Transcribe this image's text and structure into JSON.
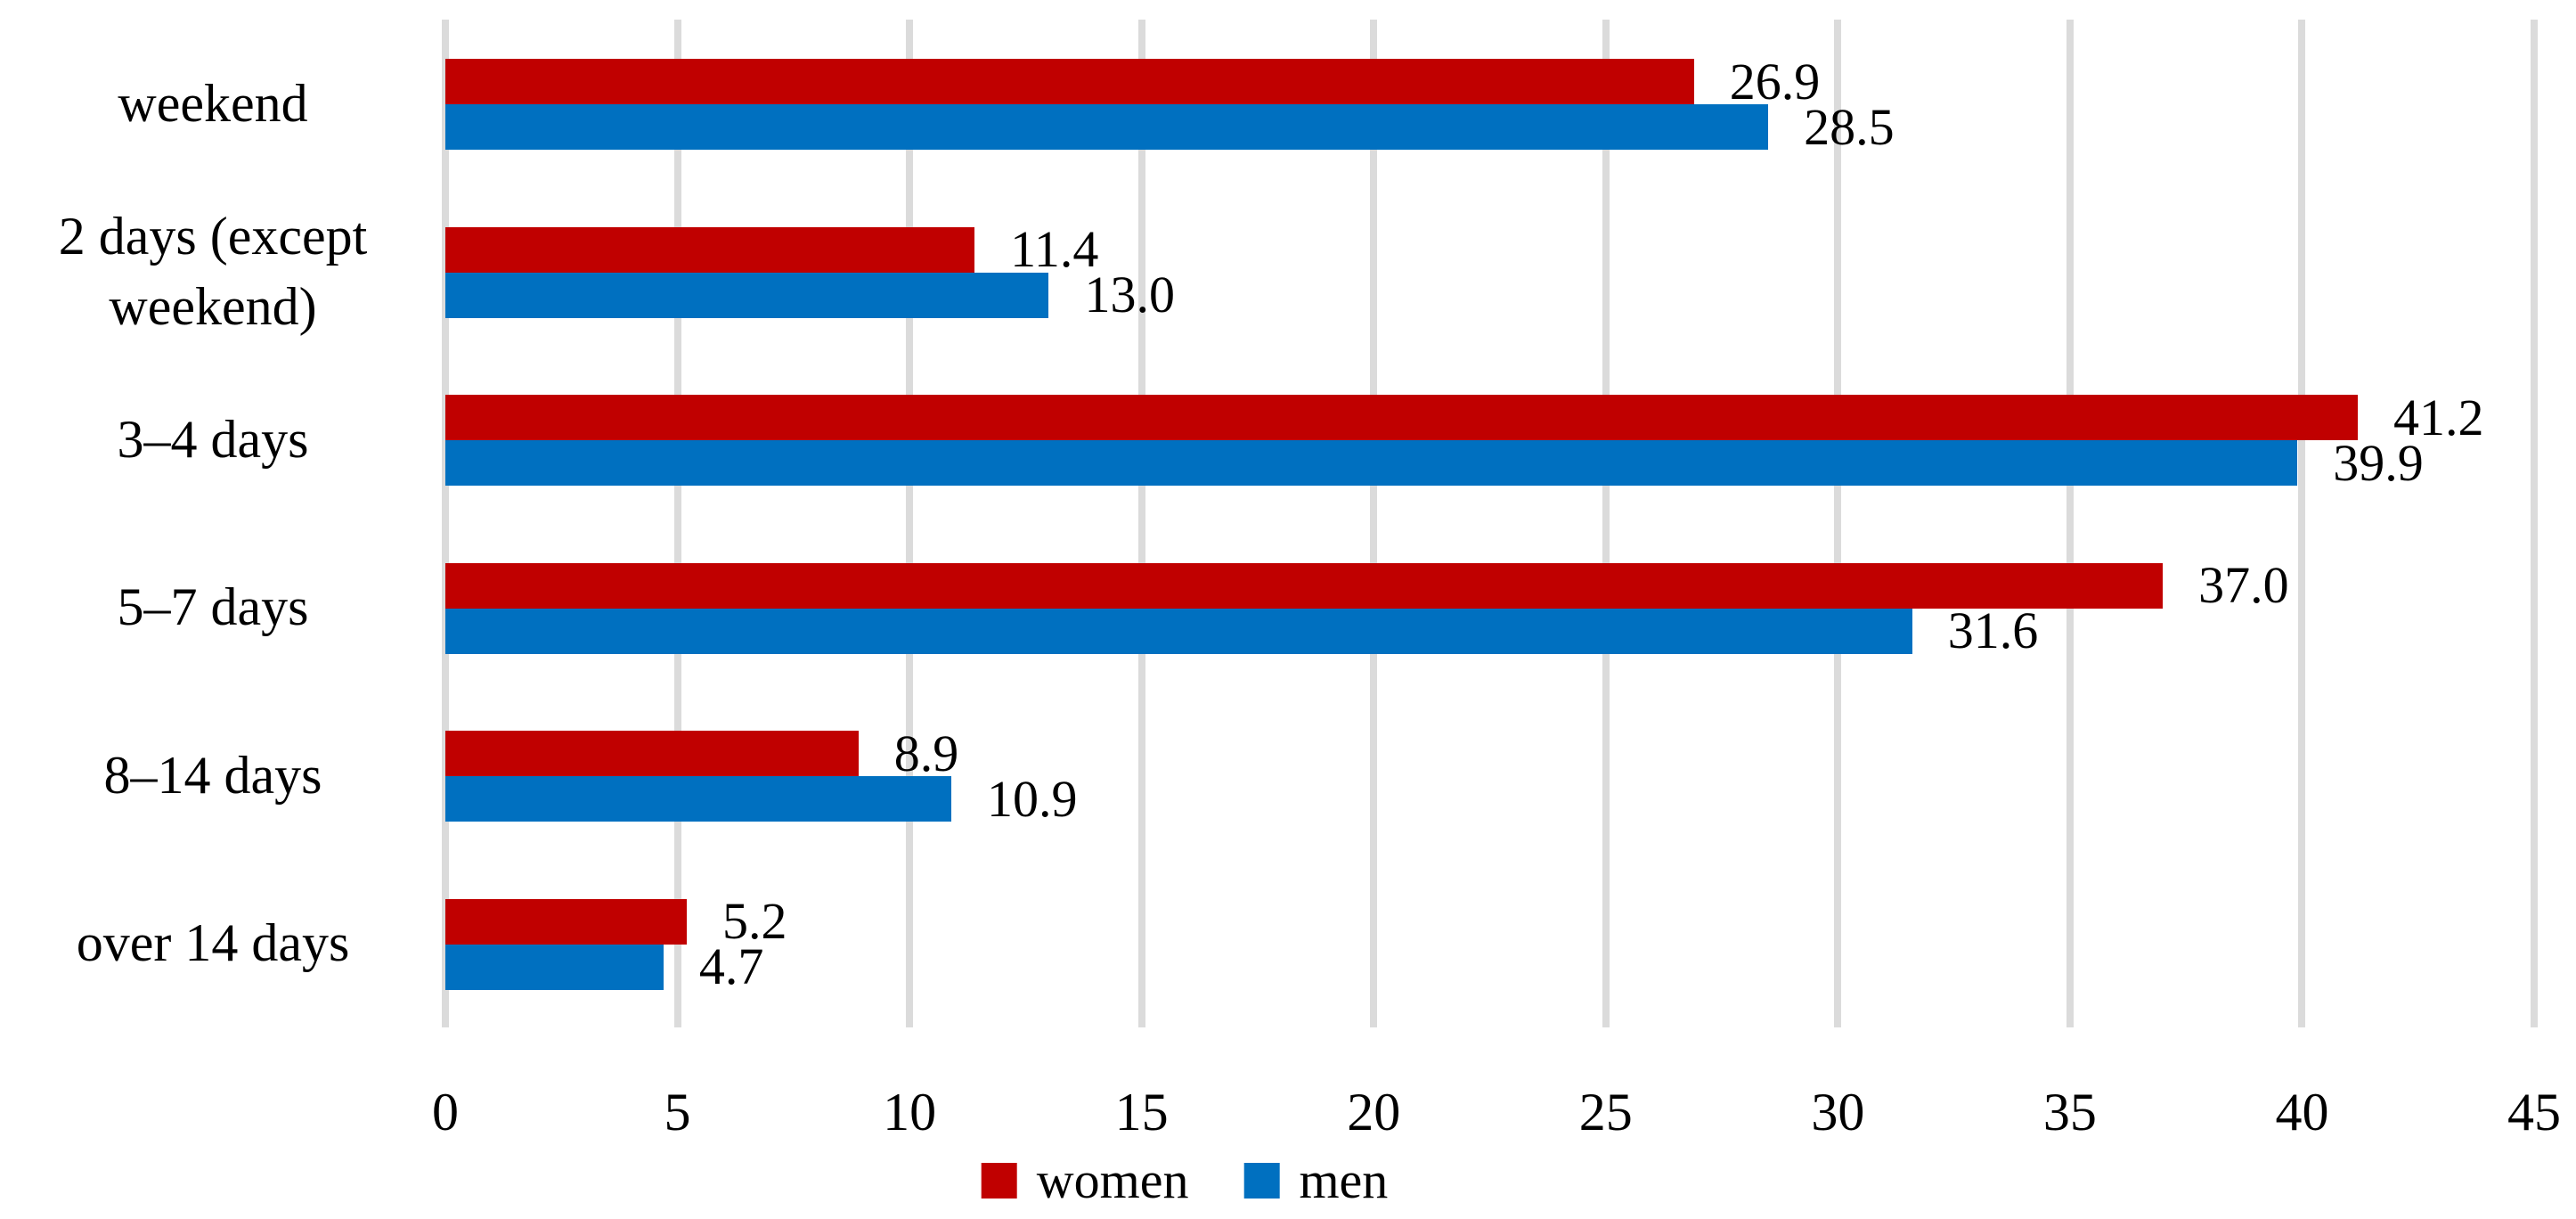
{
  "chart_data": {
    "type": "bar",
    "orientation": "horizontal",
    "title": "",
    "xlabel": "",
    "ylabel": "",
    "categories": [
      "weekend",
      "2 days (except weekend)",
      "3–4 days",
      "5–7 days",
      "8–14 days",
      "over 14 days"
    ],
    "series": [
      {
        "name": "women",
        "color": "#C00000",
        "values": [
          26.9,
          11.4,
          41.2,
          37.0,
          8.9,
          5.2
        ]
      },
      {
        "name": "men",
        "color": "#0070C0",
        "values": [
          28.5,
          13.0,
          39.9,
          31.6,
          10.9,
          4.7
        ]
      }
    ],
    "xlim": [
      0,
      45
    ],
    "x_ticks": [
      0,
      5,
      10,
      15,
      20,
      25,
      30,
      35,
      40,
      45
    ],
    "grid": "vertical-on",
    "gridline_color": "#DBDBDB",
    "value_label_decimals": 1,
    "legend_position": "bottom"
  }
}
